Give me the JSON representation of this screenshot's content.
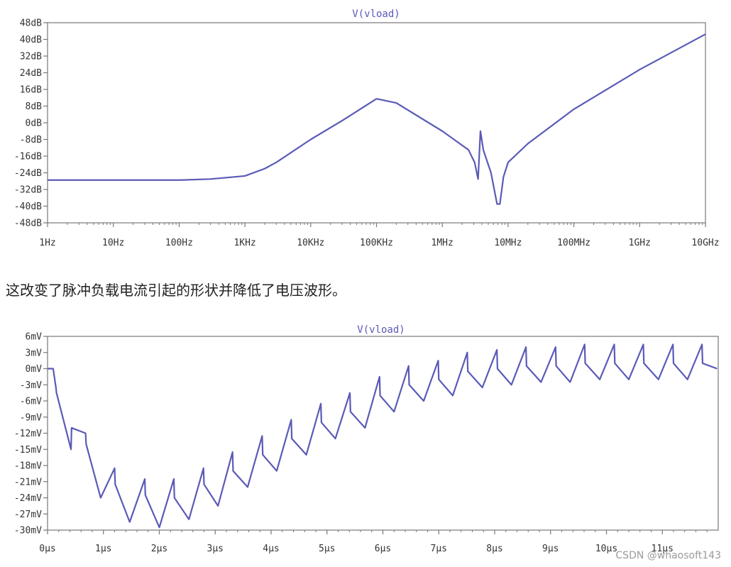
{
  "caption": "这改变了脉冲负载电流引起的形状并降低了电压波形。",
  "watermark": "CSDN @whaosoft143",
  "colors": {
    "trace": "#5a5ab8",
    "axis": "#777777",
    "text": "#333333",
    "title": "#5a5ab8"
  },
  "chart_data": [
    {
      "type": "line",
      "title": "V(vload)",
      "x_scale": "log",
      "xlim": [
        1,
        10000000000
      ],
      "ylim": [
        -48,
        48
      ],
      "y_ticks": [
        48,
        40,
        32,
        24,
        16,
        8,
        0,
        -8,
        -16,
        -24,
        -32,
        -40,
        -48
      ],
      "y_tick_labels": [
        "48dB",
        "40dB",
        "32dB",
        "24dB",
        "16dB",
        "8dB",
        "0dB",
        "-8dB",
        "-16dB",
        "-24dB",
        "-32dB",
        "-40dB",
        "-48dB"
      ],
      "x_ticks": [
        1,
        10,
        100,
        1000,
        10000,
        100000,
        1000000,
        10000000,
        100000000,
        1000000000,
        10000000000
      ],
      "x_tick_labels": [
        "1Hz",
        "10Hz",
        "100Hz",
        "1KHz",
        "10KHz",
        "100KHz",
        "1MHz",
        "10MHz",
        "100MHz",
        "1GHz",
        "10GHz"
      ],
      "series": [
        {
          "x": [
            1,
            10,
            100,
            300,
            1000,
            2000,
            3000,
            10000,
            30000,
            100000,
            200000,
            1000000,
            2500000,
            3100000,
            3500000,
            3800000,
            4200000,
            5500000,
            6800000,
            7500000,
            8500000,
            10000000,
            20000000,
            100000000,
            1000000000,
            10000000000
          ],
          "y": [
            -27.5,
            -27.5,
            -27.5,
            -27,
            -25.5,
            -22,
            -19,
            -8,
            1,
            11.5,
            9.5,
            -4,
            -13,
            -19,
            -27,
            -4,
            -13,
            -24,
            -39,
            -39,
            -26,
            -19,
            -10,
            6.5,
            25.5,
            42.5
          ]
        }
      ]
    },
    {
      "type": "line",
      "title": "V(vload)",
      "xlim": [
        0,
        12
      ],
      "ylim": [
        -30,
        6
      ],
      "y_ticks": [
        6,
        3,
        0,
        -3,
        -6,
        -9,
        -12,
        -15,
        -18,
        -21,
        -24,
        -27,
        -30
      ],
      "y_tick_labels": [
        "6mV",
        "3mV",
        "0mV",
        "-3mV",
        "-6mV",
        "-9mV",
        "-12mV",
        "-15mV",
        "-18mV",
        "-21mV",
        "-24mV",
        "-27mV",
        "-30mV"
      ],
      "x_ticks": [
        0,
        1,
        2,
        3,
        4,
        5,
        6,
        7,
        8,
        9,
        10,
        11
      ],
      "x_tick_labels": [
        "0µs",
        "1µs",
        "2µs",
        "3µs",
        "4µs",
        "5µs",
        "6µs",
        "7µs",
        "8µs",
        "9µs",
        "10µs",
        "11µs"
      ],
      "series": [
        {
          "x": [
            0,
            0.1,
            0.15,
            0.16,
            0.42,
            0.43,
            0.68,
            0.69,
            0.95,
            1.2,
            1.21,
            1.47,
            1.74,
            1.75,
            2.0,
            2.26,
            2.27,
            2.53,
            2.79,
            2.8,
            3.05,
            3.31,
            3.32,
            3.58,
            3.84,
            3.85,
            4.1,
            4.36,
            4.37,
            4.63,
            4.89,
            4.9,
            5.15,
            5.41,
            5.42,
            5.68,
            5.94,
            5.95,
            6.2,
            6.46,
            6.47,
            6.73,
            6.99,
            7.0,
            7.25,
            7.51,
            7.52,
            7.78,
            8.04,
            8.05,
            8.3,
            8.56,
            8.57,
            8.83,
            9.09,
            9.1,
            9.35,
            9.61,
            9.62,
            9.88,
            10.14,
            10.15,
            10.4,
            10.66,
            10.67,
            10.93,
            11.19,
            11.2,
            11.45,
            11.71,
            11.72,
            11.98
          ],
          "y": [
            0,
            0,
            -3.5,
            -4.5,
            -15,
            -11,
            -12,
            -14,
            -24,
            -18.5,
            -21.5,
            -28.5,
            -20.5,
            -23.5,
            -29.5,
            -20.5,
            -24,
            -28,
            -18.5,
            -21.5,
            -25.5,
            -15.5,
            -19,
            -22,
            -12.5,
            -16,
            -19,
            -9.5,
            -13,
            -16,
            -6.5,
            -10,
            -13,
            -4.5,
            -8,
            -11,
            -1.5,
            -5,
            -8,
            0.5,
            -3,
            -6,
            1.5,
            -2,
            -5,
            3,
            -0.5,
            -3.5,
            3.5,
            0,
            -3,
            4,
            0.5,
            -2.5,
            4,
            0.5,
            -2.5,
            4.5,
            1,
            -2,
            4.5,
            1,
            -2,
            4.5,
            1,
            -2,
            4.5,
            1,
            -2,
            4.5,
            1,
            0
          ]
        }
      ]
    }
  ]
}
